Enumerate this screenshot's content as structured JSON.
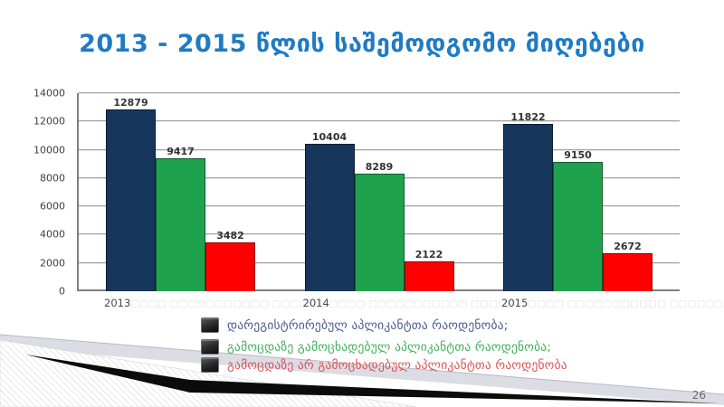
{
  "slide": {
    "title": "2013 - 2015 წლის საშემოდგომო მიღებები",
    "title_color": "#1F7BC4",
    "page_number": "26"
  },
  "chart_data": {
    "type": "bar",
    "title": "",
    "categories": [
      "2013",
      "2014",
      "2015"
    ],
    "category_missing_glyphs": "□□□□ □□□□□□□□□□□ □□□□□□",
    "series": [
      {
        "name": "დარეგისტრირებულ აპლიკანტთა რაოდენობა;",
        "color": "#16365C",
        "values": [
          12879,
          10404,
          11822
        ]
      },
      {
        "name": "გამოცდაზე გამოცხადებულ აპლიკანტთა რაოდენობა;",
        "color": "#1FA24E",
        "values": [
          9417,
          8289,
          9150
        ]
      },
      {
        "name": "გამოცდაზე არ გამოცხადებულ აპლიკანტთა რაოდენობა",
        "color": "#FE0000",
        "values": [
          3482,
          2122,
          2672
        ]
      }
    ],
    "ylim": [
      0,
      14000
    ],
    "y_step": 2000,
    "y_ticks": [
      "0",
      "2000",
      "4000",
      "6000",
      "8000",
      "10000",
      "12000",
      "14000"
    ],
    "grid": true,
    "legend_position": "bottom",
    "legend_text_colors": [
      "#4A5A8C",
      "#44AF5B",
      "#E05252"
    ]
  }
}
